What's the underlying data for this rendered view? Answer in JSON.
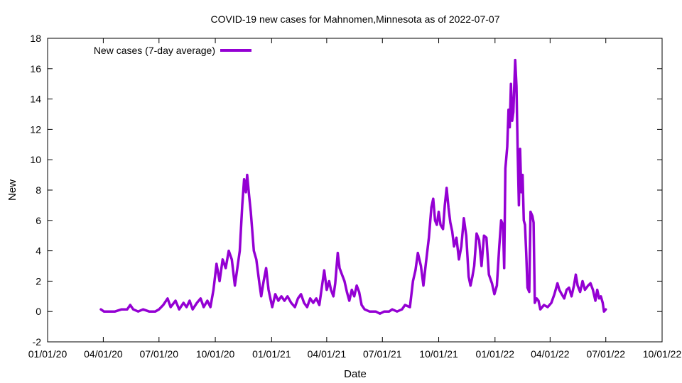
{
  "chart_data": {
    "type": "line",
    "title": "COVID-19 new cases for Mahnomen,Minnesota as of 2022-07-07",
    "xlabel": "Date",
    "ylabel": "New",
    "ylim": [
      -2,
      18
    ],
    "yticks": [
      -2,
      0,
      2,
      4,
      6,
      8,
      10,
      12,
      14,
      16,
      18
    ],
    "xlim": [
      "2020-01-01",
      "2022-10-01"
    ],
    "xticks": [
      {
        "date": "2020-01-01",
        "label": "01/01/20"
      },
      {
        "date": "2020-04-01",
        "label": "04/01/20"
      },
      {
        "date": "2020-07-01",
        "label": "07/01/20"
      },
      {
        "date": "2020-10-01",
        "label": "10/01/20"
      },
      {
        "date": "2021-01-01",
        "label": "01/01/21"
      },
      {
        "date": "2021-04-01",
        "label": "04/01/21"
      },
      {
        "date": "2021-07-01",
        "label": "07/01/21"
      },
      {
        "date": "2021-10-01",
        "label": "10/01/21"
      },
      {
        "date": "2022-01-01",
        "label": "01/01/22"
      },
      {
        "date": "2022-04-01",
        "label": "04/01/22"
      },
      {
        "date": "2022-07-01",
        "label": "07/01/22"
      },
      {
        "date": "2022-10-01",
        "label": "10/01/22"
      }
    ],
    "grid": false,
    "legend": "top-left",
    "series": [
      {
        "name": "New cases (7-day average)",
        "color": "#9400d3",
        "points": [
          [
            "2020-03-28",
            0.14
          ],
          [
            "2020-04-02",
            0.0
          ],
          [
            "2020-04-20",
            0.0
          ],
          [
            "2020-05-01",
            0.14
          ],
          [
            "2020-05-10",
            0.14
          ],
          [
            "2020-05-15",
            0.43
          ],
          [
            "2020-05-20",
            0.14
          ],
          [
            "2020-05-28",
            0.0
          ],
          [
            "2020-06-05",
            0.14
          ],
          [
            "2020-06-15",
            0.0
          ],
          [
            "2020-06-25",
            0.0
          ],
          [
            "2020-07-01",
            0.14
          ],
          [
            "2020-07-08",
            0.43
          ],
          [
            "2020-07-15",
            0.86
          ],
          [
            "2020-07-20",
            0.29
          ],
          [
            "2020-07-28",
            0.71
          ],
          [
            "2020-08-03",
            0.14
          ],
          [
            "2020-08-10",
            0.57
          ],
          [
            "2020-08-15",
            0.29
          ],
          [
            "2020-08-20",
            0.71
          ],
          [
            "2020-08-25",
            0.14
          ],
          [
            "2020-09-01",
            0.57
          ],
          [
            "2020-09-07",
            0.86
          ],
          [
            "2020-09-12",
            0.29
          ],
          [
            "2020-09-18",
            0.71
          ],
          [
            "2020-09-23",
            0.29
          ],
          [
            "2020-09-28",
            1.43
          ],
          [
            "2020-10-03",
            3.14
          ],
          [
            "2020-10-08",
            2.0
          ],
          [
            "2020-10-13",
            3.43
          ],
          [
            "2020-10-18",
            2.86
          ],
          [
            "2020-10-23",
            4.0
          ],
          [
            "2020-10-28",
            3.43
          ],
          [
            "2020-11-02",
            1.71
          ],
          [
            "2020-11-06",
            2.86
          ],
          [
            "2020-11-10",
            4.0
          ],
          [
            "2020-11-14",
            7.0
          ],
          [
            "2020-11-17",
            8.71
          ],
          [
            "2020-11-20",
            7.86
          ],
          [
            "2020-11-22",
            9.0
          ],
          [
            "2020-11-25",
            7.71
          ],
          [
            "2020-11-28",
            6.57
          ],
          [
            "2020-12-03",
            4.0
          ],
          [
            "2020-12-07",
            3.43
          ],
          [
            "2020-12-12",
            1.86
          ],
          [
            "2020-12-15",
            1.0
          ],
          [
            "2020-12-19",
            2.0
          ],
          [
            "2020-12-23",
            2.86
          ],
          [
            "2020-12-27",
            1.43
          ],
          [
            "2021-01-02",
            0.29
          ],
          [
            "2021-01-07",
            1.14
          ],
          [
            "2021-01-12",
            0.71
          ],
          [
            "2021-01-17",
            1.0
          ],
          [
            "2021-01-22",
            0.71
          ],
          [
            "2021-01-27",
            1.0
          ],
          [
            "2021-02-02",
            0.57
          ],
          [
            "2021-02-08",
            0.29
          ],
          [
            "2021-02-13",
            0.86
          ],
          [
            "2021-02-18",
            1.14
          ],
          [
            "2021-02-23",
            0.57
          ],
          [
            "2021-02-28",
            0.29
          ],
          [
            "2021-03-05",
            0.86
          ],
          [
            "2021-03-10",
            0.57
          ],
          [
            "2021-03-15",
            0.86
          ],
          [
            "2021-03-20",
            0.43
          ],
          [
            "2021-03-25",
            1.86
          ],
          [
            "2021-03-28",
            2.71
          ],
          [
            "2021-04-01",
            1.43
          ],
          [
            "2021-04-05",
            2.0
          ],
          [
            "2021-04-08",
            1.43
          ],
          [
            "2021-04-12",
            1.0
          ],
          [
            "2021-04-15",
            1.86
          ],
          [
            "2021-04-19",
            3.86
          ],
          [
            "2021-04-22",
            2.86
          ],
          [
            "2021-04-26",
            2.43
          ],
          [
            "2021-04-30",
            2.0
          ],
          [
            "2021-05-04",
            1.29
          ],
          [
            "2021-05-08",
            0.71
          ],
          [
            "2021-05-12",
            1.43
          ],
          [
            "2021-05-16",
            1.0
          ],
          [
            "2021-05-20",
            1.71
          ],
          [
            "2021-05-24",
            1.29
          ],
          [
            "2021-05-28",
            0.43
          ],
          [
            "2021-06-02",
            0.14
          ],
          [
            "2021-06-10",
            0.0
          ],
          [
            "2021-06-20",
            0.0
          ],
          [
            "2021-06-27",
            -0.14
          ],
          [
            "2021-07-04",
            0.0
          ],
          [
            "2021-07-12",
            0.0
          ],
          [
            "2021-07-17",
            0.14
          ],
          [
            "2021-07-25",
            0.0
          ],
          [
            "2021-08-02",
            0.14
          ],
          [
            "2021-08-07",
            0.43
          ],
          [
            "2021-08-15",
            0.29
          ],
          [
            "2021-08-20",
            2.0
          ],
          [
            "2021-08-24",
            2.71
          ],
          [
            "2021-08-28",
            3.86
          ],
          [
            "2021-09-02",
            3.0
          ],
          [
            "2021-09-06",
            1.71
          ],
          [
            "2021-09-10",
            3.14
          ],
          [
            "2021-09-15",
            4.86
          ],
          [
            "2021-09-19",
            6.86
          ],
          [
            "2021-09-22",
            7.43
          ],
          [
            "2021-09-25",
            6.0
          ],
          [
            "2021-09-28",
            5.71
          ],
          [
            "2021-10-01",
            6.57
          ],
          [
            "2021-10-04",
            5.71
          ],
          [
            "2021-10-08",
            5.43
          ],
          [
            "2021-10-11",
            7.0
          ],
          [
            "2021-10-14",
            8.14
          ],
          [
            "2021-10-17",
            6.86
          ],
          [
            "2021-10-20",
            5.86
          ],
          [
            "2021-10-23",
            5.29
          ],
          [
            "2021-10-26",
            4.29
          ],
          [
            "2021-10-30",
            4.86
          ],
          [
            "2021-11-03",
            3.43
          ],
          [
            "2021-11-07",
            4.29
          ],
          [
            "2021-11-11",
            6.14
          ],
          [
            "2021-11-15",
            5.0
          ],
          [
            "2021-11-19",
            2.29
          ],
          [
            "2021-11-22",
            1.71
          ],
          [
            "2021-11-25",
            2.29
          ],
          [
            "2021-11-28",
            3.0
          ],
          [
            "2021-12-02",
            5.14
          ],
          [
            "2021-12-06",
            4.71
          ],
          [
            "2021-12-10",
            3.0
          ],
          [
            "2021-12-14",
            5.0
          ],
          [
            "2021-12-18",
            4.86
          ],
          [
            "2021-12-22",
            2.43
          ],
          [
            "2021-12-27",
            1.86
          ],
          [
            "2021-12-31",
            1.14
          ],
          [
            "2022-01-04",
            1.71
          ],
          [
            "2022-01-08",
            4.29
          ],
          [
            "2022-01-11",
            6.0
          ],
          [
            "2022-01-14",
            5.71
          ],
          [
            "2022-01-16",
            2.86
          ],
          [
            "2022-01-18",
            9.43
          ],
          [
            "2022-01-21",
            10.86
          ],
          [
            "2022-01-23",
            13.29
          ],
          [
            "2022-01-25",
            12.14
          ],
          [
            "2022-01-27",
            15.0
          ],
          [
            "2022-01-29",
            12.57
          ],
          [
            "2022-01-31",
            13.14
          ],
          [
            "2022-02-03",
            16.57
          ],
          [
            "2022-02-05",
            14.86
          ],
          [
            "2022-02-07",
            10.57
          ],
          [
            "2022-02-09",
            7.0
          ],
          [
            "2022-02-11",
            10.71
          ],
          [
            "2022-02-13",
            7.86
          ],
          [
            "2022-02-15",
            9.0
          ],
          [
            "2022-02-17",
            6.0
          ],
          [
            "2022-02-19",
            5.71
          ],
          [
            "2022-02-21",
            3.86
          ],
          [
            "2022-02-23",
            1.57
          ],
          [
            "2022-02-26",
            1.29
          ],
          [
            "2022-02-28",
            6.57
          ],
          [
            "2022-03-03",
            6.29
          ],
          [
            "2022-03-05",
            5.86
          ],
          [
            "2022-03-07",
            0.57
          ],
          [
            "2022-03-10",
            0.86
          ],
          [
            "2022-03-13",
            0.71
          ],
          [
            "2022-03-16",
            0.14
          ],
          [
            "2022-03-22",
            0.43
          ],
          [
            "2022-03-28",
            0.29
          ],
          [
            "2022-04-03",
            0.57
          ],
          [
            "2022-04-08",
            1.14
          ],
          [
            "2022-04-13",
            1.86
          ],
          [
            "2022-04-16",
            1.43
          ],
          [
            "2022-04-20",
            1.14
          ],
          [
            "2022-04-24",
            0.86
          ],
          [
            "2022-04-28",
            1.43
          ],
          [
            "2022-05-02",
            1.57
          ],
          [
            "2022-05-06",
            1.0
          ],
          [
            "2022-05-10",
            1.71
          ],
          [
            "2022-05-13",
            2.43
          ],
          [
            "2022-05-16",
            1.71
          ],
          [
            "2022-05-20",
            1.29
          ],
          [
            "2022-05-24",
            2.0
          ],
          [
            "2022-05-28",
            1.43
          ],
          [
            "2022-06-02",
            1.71
          ],
          [
            "2022-06-06",
            1.86
          ],
          [
            "2022-06-10",
            1.43
          ],
          [
            "2022-06-14",
            0.71
          ],
          [
            "2022-06-17",
            1.43
          ],
          [
            "2022-06-20",
            0.86
          ],
          [
            "2022-06-23",
            1.0
          ],
          [
            "2022-06-26",
            0.57
          ],
          [
            "2022-06-28",
            0.0
          ],
          [
            "2022-07-01",
            0.14
          ]
        ]
      }
    ]
  }
}
